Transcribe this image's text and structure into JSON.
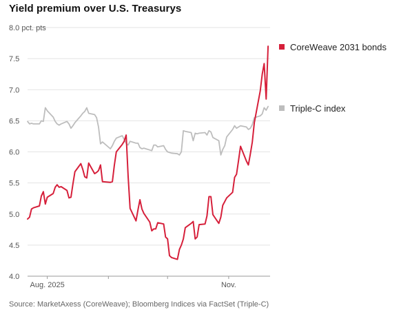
{
  "title": "Yield premium over U.S. Treasurys",
  "source": "Source: MarketAxess (CoreWeave); Bloomberg Indices via FactSet (Triple-C)",
  "colors": {
    "coreweave": "#d61f3a",
    "triple_c": "#bdbdbd",
    "grid": "#e3e3e3",
    "axis": "#999999"
  },
  "chart_data": {
    "type": "line",
    "title": "Yield premium over U.S. Treasurys",
    "ylabel": "",
    "ylim": [
      4.0,
      8.0
    ],
    "yticks": [
      4.0,
      4.5,
      5.0,
      5.5,
      6.0,
      6.5,
      7.0,
      7.5,
      8.0
    ],
    "ytick_labels": [
      "4.0",
      "4.5",
      "5.0",
      "5.5",
      "6.0",
      "6.5",
      "7.0",
      "7.5",
      "8.0 pct. pts"
    ],
    "xlim": [
      "2025-07-22",
      "2025-11-22"
    ],
    "xticks": [
      "2025-08-01",
      "2025-09-01",
      "2025-10-01",
      "2025-11-01"
    ],
    "xtick_labels": [
      "Aug. 2025",
      "",
      "",
      "Nov."
    ],
    "grid": true,
    "legend": "right, at line ends",
    "series": [
      {
        "name": "CoreWeave 2031 bonds",
        "color": "#d61f3a",
        "points": [
          [
            "2025-07-22",
            4.92
          ],
          [
            "2025-07-23",
            4.95
          ],
          [
            "2025-07-24",
            5.08
          ],
          [
            "2025-07-25",
            5.1
          ],
          [
            "2025-07-28",
            5.13
          ],
          [
            "2025-07-29",
            5.29
          ],
          [
            "2025-07-30",
            5.36
          ],
          [
            "2025-07-31",
            5.16
          ],
          [
            "2025-08-01",
            5.27
          ],
          [
            "2025-08-04",
            5.33
          ],
          [
            "2025-08-05",
            5.43
          ],
          [
            "2025-08-06",
            5.47
          ],
          [
            "2025-08-07",
            5.43
          ],
          [
            "2025-08-08",
            5.44
          ],
          [
            "2025-08-11",
            5.38
          ],
          [
            "2025-08-12",
            5.26
          ],
          [
            "2025-08-13",
            5.27
          ],
          [
            "2025-08-14",
            5.48
          ],
          [
            "2025-08-15",
            5.68
          ],
          [
            "2025-08-18",
            5.81
          ],
          [
            "2025-08-19",
            5.72
          ],
          [
            "2025-08-20",
            5.6
          ],
          [
            "2025-08-21",
            5.58
          ],
          [
            "2025-08-22",
            5.82
          ],
          [
            "2025-08-25",
            5.65
          ],
          [
            "2025-08-26",
            5.67
          ],
          [
            "2025-08-27",
            5.7
          ],
          [
            "2025-08-28",
            5.79
          ],
          [
            "2025-08-29",
            5.52
          ],
          [
            "2025-09-02",
            5.51
          ],
          [
            "2025-09-03",
            5.52
          ],
          [
            "2025-09-04",
            5.78
          ],
          [
            "2025-09-05",
            6.0
          ],
          [
            "2025-09-08",
            6.12
          ],
          [
            "2025-09-09",
            6.17
          ],
          [
            "2025-09-10",
            6.27
          ],
          [
            "2025-09-11",
            5.6
          ],
          [
            "2025-09-12",
            5.09
          ],
          [
            "2025-09-15",
            4.89
          ],
          [
            "2025-09-16",
            5.07
          ],
          [
            "2025-09-17",
            5.23
          ],
          [
            "2025-09-18",
            5.08
          ],
          [
            "2025-09-19",
            5.01
          ],
          [
            "2025-09-22",
            4.87
          ],
          [
            "2025-09-23",
            4.73
          ],
          [
            "2025-09-24",
            4.76
          ],
          [
            "2025-09-25",
            4.76
          ],
          [
            "2025-09-26",
            4.86
          ],
          [
            "2025-09-29",
            4.84
          ],
          [
            "2025-09-30",
            4.63
          ],
          [
            "2025-10-01",
            4.6
          ],
          [
            "2025-10-02",
            4.33
          ],
          [
            "2025-10-03",
            4.3
          ],
          [
            "2025-10-06",
            4.27
          ],
          [
            "2025-10-07",
            4.43
          ],
          [
            "2025-10-08",
            4.5
          ],
          [
            "2025-10-09",
            4.6
          ],
          [
            "2025-10-10",
            4.78
          ],
          [
            "2025-10-13",
            4.85
          ],
          [
            "2025-10-14",
            4.88
          ],
          [
            "2025-10-15",
            4.6
          ],
          [
            "2025-10-16",
            4.63
          ],
          [
            "2025-10-17",
            4.83
          ],
          [
            "2025-10-20",
            4.84
          ],
          [
            "2025-10-21",
            4.97
          ],
          [
            "2025-10-22",
            5.28
          ],
          [
            "2025-10-23",
            5.28
          ],
          [
            "2025-10-24",
            4.99
          ],
          [
            "2025-10-27",
            4.85
          ],
          [
            "2025-10-28",
            4.95
          ],
          [
            "2025-10-29",
            5.14
          ],
          [
            "2025-10-30",
            5.2
          ],
          [
            "2025-10-31",
            5.26
          ],
          [
            "2025-11-03",
            5.35
          ],
          [
            "2025-11-04",
            5.59
          ],
          [
            "2025-11-05",
            5.64
          ],
          [
            "2025-11-06",
            5.86
          ],
          [
            "2025-11-07",
            6.09
          ],
          [
            "2025-11-10",
            5.85
          ],
          [
            "2025-11-11",
            5.79
          ],
          [
            "2025-11-12",
            5.97
          ],
          [
            "2025-11-13",
            6.16
          ],
          [
            "2025-11-14",
            6.47
          ],
          [
            "2025-11-17",
            6.98
          ],
          [
            "2025-11-18",
            7.25
          ],
          [
            "2025-11-19",
            7.42
          ],
          [
            "2025-11-20",
            6.85
          ],
          [
            "2025-11-21",
            7.7
          ]
        ]
      },
      {
        "name": "Triple-C index",
        "color": "#bdbdbd",
        "points": [
          [
            "2025-07-22",
            6.49
          ],
          [
            "2025-07-23",
            6.45
          ],
          [
            "2025-07-24",
            6.46
          ],
          [
            "2025-07-25",
            6.45
          ],
          [
            "2025-07-28",
            6.45
          ],
          [
            "2025-07-29",
            6.5
          ],
          [
            "2025-07-30",
            6.49
          ],
          [
            "2025-07-31",
            6.71
          ],
          [
            "2025-08-01",
            6.66
          ],
          [
            "2025-08-04",
            6.56
          ],
          [
            "2025-08-05",
            6.49
          ],
          [
            "2025-08-06",
            6.45
          ],
          [
            "2025-08-07",
            6.43
          ],
          [
            "2025-08-08",
            6.45
          ],
          [
            "2025-08-11",
            6.49
          ],
          [
            "2025-08-12",
            6.45
          ],
          [
            "2025-08-13",
            6.38
          ],
          [
            "2025-08-14",
            6.42
          ],
          [
            "2025-08-15",
            6.47
          ],
          [
            "2025-08-18",
            6.58
          ],
          [
            "2025-08-19",
            6.62
          ],
          [
            "2025-08-20",
            6.65
          ],
          [
            "2025-08-21",
            6.71
          ],
          [
            "2025-08-22",
            6.62
          ],
          [
            "2025-08-25",
            6.6
          ],
          [
            "2025-08-26",
            6.55
          ],
          [
            "2025-08-27",
            6.4
          ],
          [
            "2025-08-28",
            6.13
          ],
          [
            "2025-08-29",
            6.16
          ],
          [
            "2025-09-02",
            6.05
          ],
          [
            "2025-09-03",
            6.1
          ],
          [
            "2025-09-04",
            6.17
          ],
          [
            "2025-09-05",
            6.22
          ],
          [
            "2025-09-08",
            6.26
          ],
          [
            "2025-09-09",
            6.2
          ],
          [
            "2025-09-10",
            6.14
          ],
          [
            "2025-09-11",
            6.11
          ],
          [
            "2025-09-12",
            6.17
          ],
          [
            "2025-09-15",
            6.14
          ],
          [
            "2025-09-16",
            6.14
          ],
          [
            "2025-09-17",
            6.07
          ],
          [
            "2025-09-18",
            6.05
          ],
          [
            "2025-09-19",
            6.06
          ],
          [
            "2025-09-22",
            6.03
          ],
          [
            "2025-09-23",
            6.02
          ],
          [
            "2025-09-24",
            6.11
          ],
          [
            "2025-09-25",
            6.11
          ],
          [
            "2025-09-26",
            6.08
          ],
          [
            "2025-09-29",
            6.1
          ],
          [
            "2025-09-30",
            6.04
          ],
          [
            "2025-10-01",
            6.0
          ],
          [
            "2025-10-02",
            5.99
          ],
          [
            "2025-10-03",
            5.98
          ],
          [
            "2025-10-06",
            5.97
          ],
          [
            "2025-10-07",
            5.95
          ],
          [
            "2025-10-08",
            6.0
          ],
          [
            "2025-10-09",
            6.34
          ],
          [
            "2025-10-10",
            6.33
          ],
          [
            "2025-10-13",
            6.31
          ],
          [
            "2025-10-14",
            6.18
          ],
          [
            "2025-10-15",
            6.3
          ],
          [
            "2025-10-16",
            6.29
          ],
          [
            "2025-10-17",
            6.3
          ],
          [
            "2025-10-20",
            6.31
          ],
          [
            "2025-10-21",
            6.27
          ],
          [
            "2025-10-22",
            6.34
          ],
          [
            "2025-10-23",
            6.32
          ],
          [
            "2025-10-24",
            6.23
          ],
          [
            "2025-10-27",
            6.18
          ],
          [
            "2025-10-28",
            5.95
          ],
          [
            "2025-10-29",
            6.04
          ],
          [
            "2025-10-30",
            6.1
          ],
          [
            "2025-10-31",
            6.24
          ],
          [
            "2025-11-03",
            6.36
          ],
          [
            "2025-11-04",
            6.42
          ],
          [
            "2025-11-05",
            6.38
          ],
          [
            "2025-11-06",
            6.4
          ],
          [
            "2025-11-07",
            6.42
          ],
          [
            "2025-11-10",
            6.4
          ],
          [
            "2025-11-11",
            6.36
          ],
          [
            "2025-11-12",
            6.38
          ],
          [
            "2025-11-13",
            6.44
          ],
          [
            "2025-11-14",
            6.55
          ],
          [
            "2025-11-17",
            6.58
          ],
          [
            "2025-11-18",
            6.61
          ],
          [
            "2025-11-19",
            6.71
          ],
          [
            "2025-11-20",
            6.67
          ],
          [
            "2025-11-21",
            6.73
          ]
        ]
      }
    ]
  }
}
